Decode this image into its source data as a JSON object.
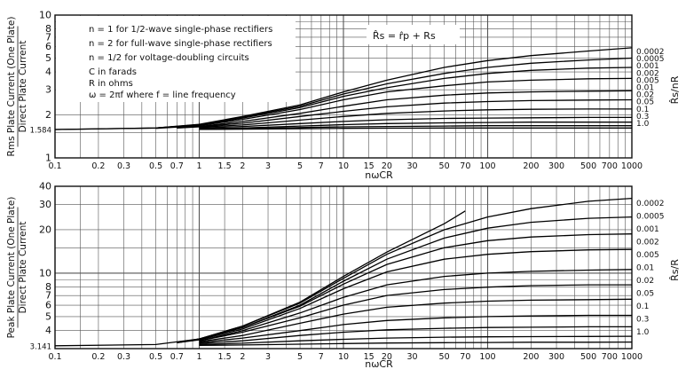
{
  "chart_data": [
    {
      "type": "line",
      "xscale": "log",
      "yscale": "log",
      "xlim": [
        0.1,
        1000
      ],
      "ylim": [
        1,
        10
      ],
      "xlabel": "nωCR",
      "ylabel_top": "Rms Plate Current (One Plate)",
      "ylabel_bottom": "Direct Plate Current",
      "right_label": "R̂s/nR",
      "x_ticks": [
        "0.1",
        "0.2",
        "0.3",
        "0.5",
        "0.7",
        "1",
        "1.5",
        "2",
        "3",
        "5",
        "7",
        "10",
        "15",
        "20",
        "30",
        "50",
        "70",
        "100",
        "200",
        "300",
        "500",
        "700",
        "1000"
      ],
      "x_tick_values": [
        0.1,
        0.2,
        0.3,
        0.5,
        0.7,
        1,
        1.5,
        2,
        3,
        5,
        7,
        10,
        15,
        20,
        30,
        50,
        70,
        100,
        200,
        300,
        500,
        700,
        1000
      ],
      "y_ticks": [
        "10",
        "8",
        "7",
        "6",
        "5",
        "4",
        "3",
        "2",
        "1.584",
        "1"
      ],
      "y_tick_values": [
        10,
        8,
        7,
        6,
        5,
        4,
        3,
        2,
        1.584,
        1
      ],
      "notes": [
        "n = 1 for 1/2-wave single-phase rectifiers",
        "n = 2 for full-wave single-phase rectifiers",
        "n = 1/2 for voltage-doubling circuits",
        "C in farads",
        "R in ohms",
        "ω = 2πf where f = line frequency"
      ],
      "formula": "R̂s = r̂p + Rs",
      "series": [
        {
          "name": "0.0002",
          "x": [
            0.1,
            0.5,
            1,
            2,
            5,
            10,
            20,
            50,
            100,
            200,
            500,
            1000
          ],
          "y": [
            1.58,
            1.62,
            1.72,
            1.95,
            2.35,
            2.9,
            3.5,
            4.3,
            4.8,
            5.2,
            5.6,
            5.9
          ]
        },
        {
          "name": "0.0005",
          "x": [
            0.1,
            0.5,
            1,
            2,
            5,
            10,
            20,
            50,
            100,
            200,
            500,
            1000
          ],
          "y": [
            1.58,
            1.62,
            1.71,
            1.93,
            2.3,
            2.8,
            3.3,
            3.9,
            4.3,
            4.6,
            4.85,
            5.0
          ]
        },
        {
          "name": "0.001",
          "x": [
            0.5,
            1,
            2,
            5,
            10,
            20,
            50,
            100,
            200,
            500,
            1000
          ],
          "y": [
            1.62,
            1.7,
            1.9,
            2.25,
            2.7,
            3.1,
            3.6,
            3.9,
            4.1,
            4.25,
            4.3
          ]
        },
        {
          "name": "0.002",
          "x": [
            0.5,
            1,
            2,
            5,
            10,
            20,
            50,
            100,
            200,
            500,
            1000
          ],
          "y": [
            1.61,
            1.68,
            1.86,
            2.18,
            2.55,
            2.9,
            3.2,
            3.4,
            3.5,
            3.58,
            3.6
          ]
        },
        {
          "name": "0.005",
          "x": [
            0.7,
            1,
            2,
            5,
            10,
            20,
            50,
            100,
            200,
            500,
            1000
          ],
          "y": [
            1.63,
            1.66,
            1.8,
            2.05,
            2.3,
            2.55,
            2.75,
            2.85,
            2.9,
            2.93,
            2.95
          ]
        },
        {
          "name": "0.01",
          "x": [
            0.7,
            1,
            2,
            5,
            10,
            20,
            50,
            100,
            200,
            500,
            1000
          ],
          "y": [
            1.62,
            1.65,
            1.75,
            1.95,
            2.12,
            2.28,
            2.42,
            2.48,
            2.52,
            2.54,
            2.55
          ]
        },
        {
          "name": "0.02",
          "x": [
            1,
            2,
            5,
            10,
            20,
            50,
            100,
            200,
            500,
            1000
          ],
          "y": [
            1.64,
            1.7,
            1.84,
            1.95,
            2.05,
            2.13,
            2.17,
            2.19,
            2.2,
            2.2
          ]
        },
        {
          "name": "0.05",
          "x": [
            1,
            2,
            5,
            10,
            20,
            50,
            100,
            200,
            500,
            1000
          ],
          "y": [
            1.62,
            1.66,
            1.74,
            1.8,
            1.85,
            1.89,
            1.9,
            1.91,
            1.92,
            1.92
          ]
        },
        {
          "name": "0.1",
          "x": [
            1,
            2,
            5,
            10,
            20,
            50,
            100,
            200,
            500,
            1000
          ],
          "y": [
            1.6,
            1.62,
            1.67,
            1.71,
            1.74,
            1.76,
            1.77,
            1.78,
            1.78,
            1.78
          ]
        },
        {
          "name": "0.3",
          "x": [
            1,
            2,
            5,
            10,
            20,
            50,
            100,
            200,
            500,
            1000
          ],
          "y": [
            1.59,
            1.6,
            1.63,
            1.65,
            1.66,
            1.67,
            1.68,
            1.68,
            1.68,
            1.68
          ]
        },
        {
          "name": "1.0",
          "x": [
            1,
            2,
            5,
            10,
            20,
            50,
            100,
            200,
            500,
            1000
          ],
          "y": [
            1.585,
            1.59,
            1.6,
            1.61,
            1.615,
            1.62,
            1.62,
            1.62,
            1.62,
            1.62
          ]
        }
      ]
    },
    {
      "type": "line",
      "xscale": "log",
      "yscale": "log",
      "xlim": [
        0.1,
        1000
      ],
      "ylim": [
        3,
        40
      ],
      "xlabel": "nωCR",
      "ylabel_top": "Peak Plate Current (One Plate)",
      "ylabel_bottom": "Direct Plate Current",
      "right_label": "R̂s/R",
      "x_ticks": [
        "0.1",
        "0.2",
        "0.3",
        "0.5",
        "0.7",
        "1",
        "1.5",
        "2",
        "3",
        "5",
        "7",
        "10",
        "15",
        "20",
        "30",
        "50",
        "70",
        "100",
        "200",
        "300",
        "500",
        "700",
        "1000"
      ],
      "x_tick_values": [
        0.1,
        0.2,
        0.3,
        0.5,
        0.7,
        1,
        1.5,
        2,
        3,
        5,
        7,
        10,
        15,
        20,
        30,
        50,
        70,
        100,
        200,
        300,
        500,
        700,
        1000
      ],
      "y_ticks": [
        "40",
        "30",
        "20",
        "10",
        "8",
        "7",
        "6",
        "5",
        "4",
        "3.141"
      ],
      "y_tick_values": [
        40,
        30,
        20,
        10,
        8,
        7,
        6,
        5,
        4,
        3.141
      ],
      "series": [
        {
          "name": "limit",
          "x": [
            0.1,
            0.5,
            1,
            2,
            5,
            10,
            20,
            50,
            70
          ],
          "y": [
            3.14,
            3.2,
            3.5,
            4.3,
            6.3,
            9.5,
            14,
            22,
            27
          ]
        },
        {
          "name": "0.0002",
          "x": [
            0.7,
            1,
            2,
            5,
            10,
            20,
            50,
            100,
            200,
            500,
            1000
          ],
          "y": [
            3.3,
            3.5,
            4.3,
            6.2,
            9.2,
            13.5,
            20,
            24.5,
            28,
            31.5,
            33
          ]
        },
        {
          "name": "0.0005",
          "x": [
            0.7,
            1,
            2,
            5,
            10,
            20,
            50,
            100,
            200,
            500,
            1000
          ],
          "y": [
            3.3,
            3.5,
            4.2,
            6.0,
            8.8,
            12.5,
            17.5,
            20.5,
            22.5,
            24,
            24.5
          ]
        },
        {
          "name": "0.001",
          "x": [
            0.7,
            1,
            2,
            5,
            10,
            20,
            50,
            100,
            200,
            500,
            1000
          ],
          "y": [
            3.3,
            3.5,
            4.2,
            5.9,
            8.4,
            11.5,
            15,
            16.8,
            17.8,
            18.5,
            18.7
          ]
        },
        {
          "name": "0.002",
          "x": [
            0.7,
            1,
            2,
            5,
            10,
            20,
            50,
            100,
            200,
            500,
            1000
          ],
          "y": [
            3.3,
            3.45,
            4.1,
            5.7,
            7.8,
            10.2,
            12.5,
            13.5,
            14.1,
            14.5,
            14.6
          ]
        },
        {
          "name": "0.005",
          "x": [
            1,
            2,
            5,
            10,
            20,
            50,
            100,
            200,
            500,
            1000
          ],
          "y": [
            3.4,
            4.0,
            5.3,
            6.8,
            8.3,
            9.5,
            10,
            10.3,
            10.5,
            10.6
          ]
        },
        {
          "name": "0.01",
          "x": [
            1,
            2,
            5,
            10,
            20,
            50,
            100,
            200,
            500,
            1000
          ],
          "y": [
            3.4,
            3.9,
            4.9,
            6.0,
            7.0,
            7.7,
            8.0,
            8.2,
            8.3,
            8.3
          ]
        },
        {
          "name": "0.02",
          "x": [
            1,
            2,
            5,
            10,
            20,
            50,
            100,
            200,
            500,
            1000
          ],
          "y": [
            3.35,
            3.7,
            4.5,
            5.2,
            5.8,
            6.2,
            6.4,
            6.5,
            6.55,
            6.6
          ]
        },
        {
          "name": "0.05",
          "x": [
            1,
            2,
            5,
            10,
            20,
            50,
            100,
            200,
            500,
            1000
          ],
          "y": [
            3.3,
            3.55,
            4.0,
            4.4,
            4.7,
            4.9,
            5.0,
            5.05,
            5.1,
            5.1
          ]
        },
        {
          "name": "0.1",
          "x": [
            1,
            2,
            5,
            10,
            20,
            50,
            100,
            200,
            500,
            1000
          ],
          "y": [
            3.25,
            3.4,
            3.7,
            3.9,
            4.05,
            4.15,
            4.2,
            4.22,
            4.25,
            4.25
          ]
        },
        {
          "name": "0.3",
          "x": [
            1,
            2,
            5,
            10,
            20,
            50,
            100,
            200,
            500,
            1000
          ],
          "y": [
            3.2,
            3.27,
            3.4,
            3.48,
            3.55,
            3.6,
            3.62,
            3.63,
            3.64,
            3.65
          ]
        },
        {
          "name": "1.0",
          "x": [
            1,
            2,
            5,
            10,
            20,
            50,
            100,
            200,
            500,
            1000
          ],
          "y": [
            3.16,
            3.18,
            3.22,
            3.25,
            3.28,
            3.3,
            3.31,
            3.32,
            3.32,
            3.33
          ]
        }
      ],
      "right_labels": [
        "0.0002",
        "0.0005",
        "0.001",
        "0.002",
        "0.005",
        "0.01",
        "0.02",
        "0.05",
        "0.1",
        "0.3",
        "1.0"
      ]
    }
  ],
  "top_right_labels": [
    "0.0002",
    "0.0005",
    "0.001",
    "0.002",
    "0.005",
    "0.01",
    "0.02",
    "0.05",
    "0.1",
    "0.3",
    "1.0"
  ]
}
